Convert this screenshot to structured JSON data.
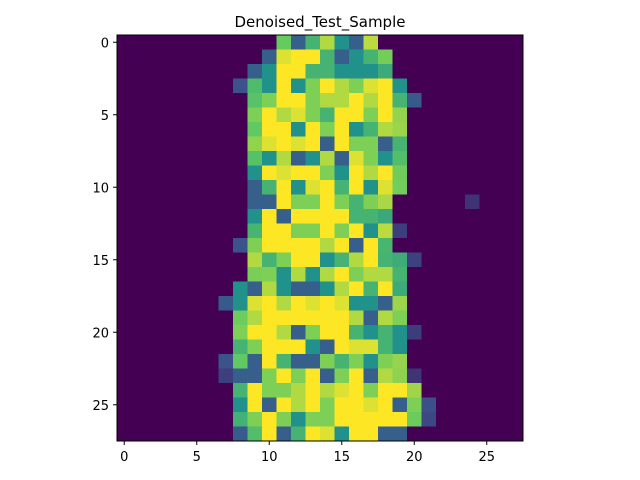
{
  "chart_data": {
    "type": "heatmap",
    "title": "Denoised_Test_Sample",
    "xlabel": "",
    "ylabel": "",
    "colormap": "viridis",
    "rows": 28,
    "cols": 28,
    "x_ticks": [
      0,
      5,
      10,
      15,
      20,
      25
    ],
    "y_ticks": [
      0,
      5,
      10,
      15,
      20,
      25
    ],
    "x_tick_labels": [
      "0",
      "5",
      "10",
      "15",
      "20",
      "25"
    ],
    "y_tick_labels": [
      "0",
      "5",
      "10",
      "15",
      "20",
      "25"
    ],
    "xlim": [
      -0.5,
      27.5
    ],
    "ylim": [
      27.5,
      -0.5
    ],
    "value_range": [
      0,
      1
    ],
    "silhouette": [
      [
        11,
        17
      ],
      [
        10,
        18
      ],
      [
        9,
        18
      ],
      [
        9,
        19
      ],
      [
        9,
        19
      ],
      [
        9,
        19
      ],
      [
        9,
        19
      ],
      [
        9,
        19
      ],
      [
        9,
        19
      ],
      [
        9,
        19
      ],
      [
        9,
        19
      ],
      [
        9,
        18
      ],
      [
        9,
        18
      ],
      [
        9,
        18
      ],
      [
        9,
        18
      ],
      [
        9,
        19
      ],
      [
        9,
        19
      ],
      [
        8,
        19
      ],
      [
        8,
        19
      ],
      [
        8,
        19
      ],
      [
        8,
        19
      ],
      [
        8,
        19
      ],
      [
        8,
        19
      ],
      [
        8,
        19
      ],
      [
        8,
        20
      ],
      [
        8,
        20
      ],
      [
        8,
        20
      ],
      [
        9,
        19
      ]
    ]
  }
}
